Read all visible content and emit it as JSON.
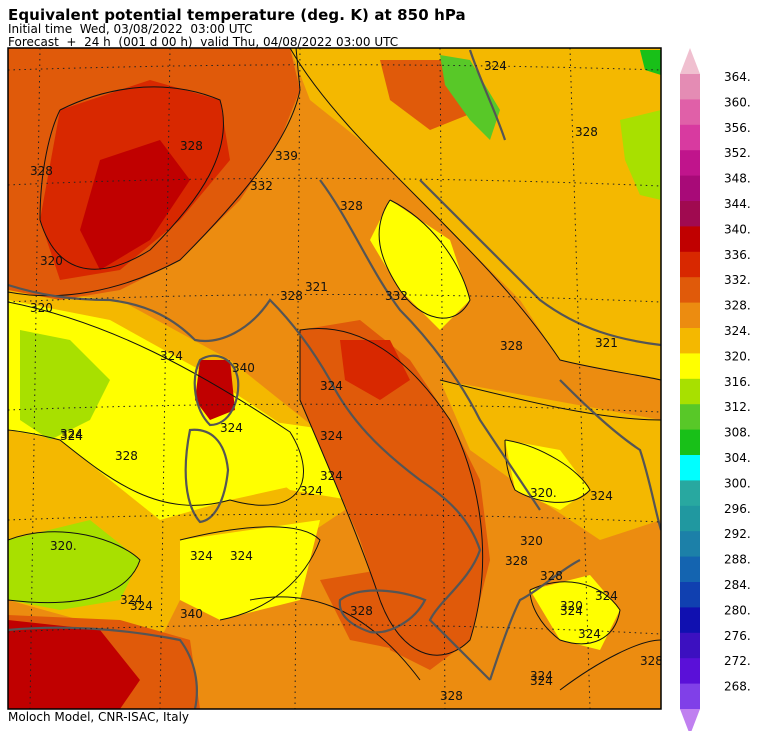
{
  "header": {
    "title": "Equivalent potential temperature (deg. K) at 850 hPa",
    "initial_time": "Initial time  Wed, 03/08/2022  03:00 UTC",
    "forecast": "Forecast  +  24 h  (001 d 00 h)  valid Thu, 04/08/2022 03:00 UTC"
  },
  "footer": "Moloch Model, CNR-ISAC, Italy",
  "colorbar": {
    "levels": [
      "364.",
      "360.",
      "356.",
      "352.",
      "348.",
      "344.",
      "340.",
      "336.",
      "332.",
      "328.",
      "324.",
      "320.",
      "316.",
      "312.",
      "308.",
      "304.",
      "300.",
      "296.",
      "292.",
      "288.",
      "284.",
      "280.",
      "276.",
      "272.",
      "268."
    ],
    "colors": [
      "#e48cb4",
      "#e060a8",
      "#d83aa0",
      "#c0148c",
      "#a80a78",
      "#a00a50",
      "#c00000",
      "#d82800",
      "#e05a0a",
      "#ec8c10",
      "#f4b800",
      "#ffff00",
      "#a8e000",
      "#58c828",
      "#18c018",
      "#00ffff",
      "#28a8a0",
      "#2098a0",
      "#1c80a8",
      "#1464b0",
      "#1040b0",
      "#1010b0",
      "#3c10c0",
      "#5a10d8",
      "#8040e8"
    ],
    "top_arrow_color": "#f0c0d0",
    "bottom_arrow_color": "#c080f0"
  },
  "contour_labels": [
    "324",
    "339",
    "328",
    "328",
    "332",
    "320",
    "324",
    "324",
    "324",
    "324",
    "328",
    "324",
    "320.",
    "324",
    "328",
    "324",
    "328",
    "320",
    "324",
    "328",
    "320.",
    "324",
    "328",
    "324",
    "328",
    "328",
    "328",
    "324",
    "321",
    "332",
    "340",
    "324",
    "324",
    "321",
    "328",
    "324",
    "328",
    "324",
    "340",
    "324",
    "320",
    "324",
    "324",
    "320"
  ]
}
